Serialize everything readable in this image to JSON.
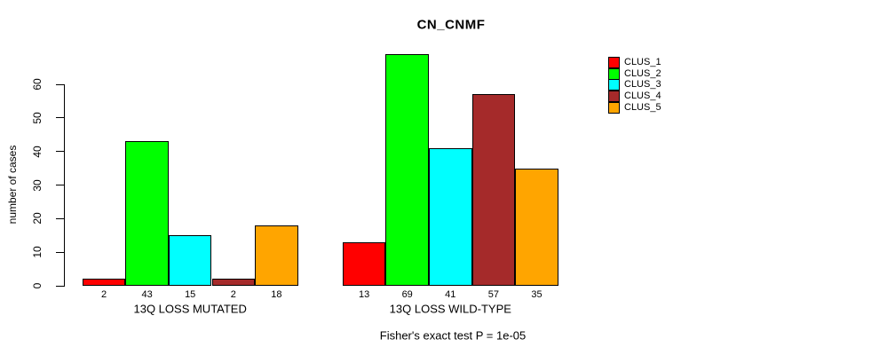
{
  "chart_data": {
    "type": "bar",
    "title": "CN_CNMF",
    "ylabel": "number of cases",
    "footer": "Fisher's exact test P = 1e-05",
    "ylim": [
      0,
      60
    ],
    "y_ticks": [
      0,
      10,
      20,
      30,
      40,
      50,
      60
    ],
    "grid": false,
    "legend_position": "right",
    "categories": [
      "13Q LOSS MUTATED",
      "13Q LOSS WILD-TYPE"
    ],
    "groups": [
      {
        "label": "13Q LOSS MUTATED",
        "values": [
          2,
          43,
          15,
          2,
          18
        ]
      },
      {
        "label": "13Q LOSS WILD-TYPE",
        "values": [
          13,
          69,
          41,
          57,
          35
        ]
      }
    ],
    "series": [
      {
        "name": "CLUS_1",
        "color": "#FF0000",
        "values": [
          2,
          13
        ]
      },
      {
        "name": "CLUS_2",
        "color": "#00FF00",
        "values": [
          43,
          69
        ]
      },
      {
        "name": "CLUS_3",
        "color": "#00FFFF",
        "values": [
          15,
          41
        ]
      },
      {
        "name": "CLUS_4",
        "color": "#A52A2A",
        "values": [
          2,
          57
        ]
      },
      {
        "name": "CLUS_5",
        "color": "#FFA500",
        "values": [
          18,
          35
        ]
      }
    ],
    "legend": [
      {
        "label": "CLUS_1",
        "color": "#FF0000"
      },
      {
        "label": "CLUS_2",
        "color": "#00FF00"
      },
      {
        "label": "CLUS_3",
        "color": "#00FFFF"
      },
      {
        "label": "CLUS_4",
        "color": "#A52A2A"
      },
      {
        "label": "CLUS_5",
        "color": "#FFA500"
      }
    ],
    "axis_color": "#000000",
    "bar_border_color": "#000000"
  }
}
